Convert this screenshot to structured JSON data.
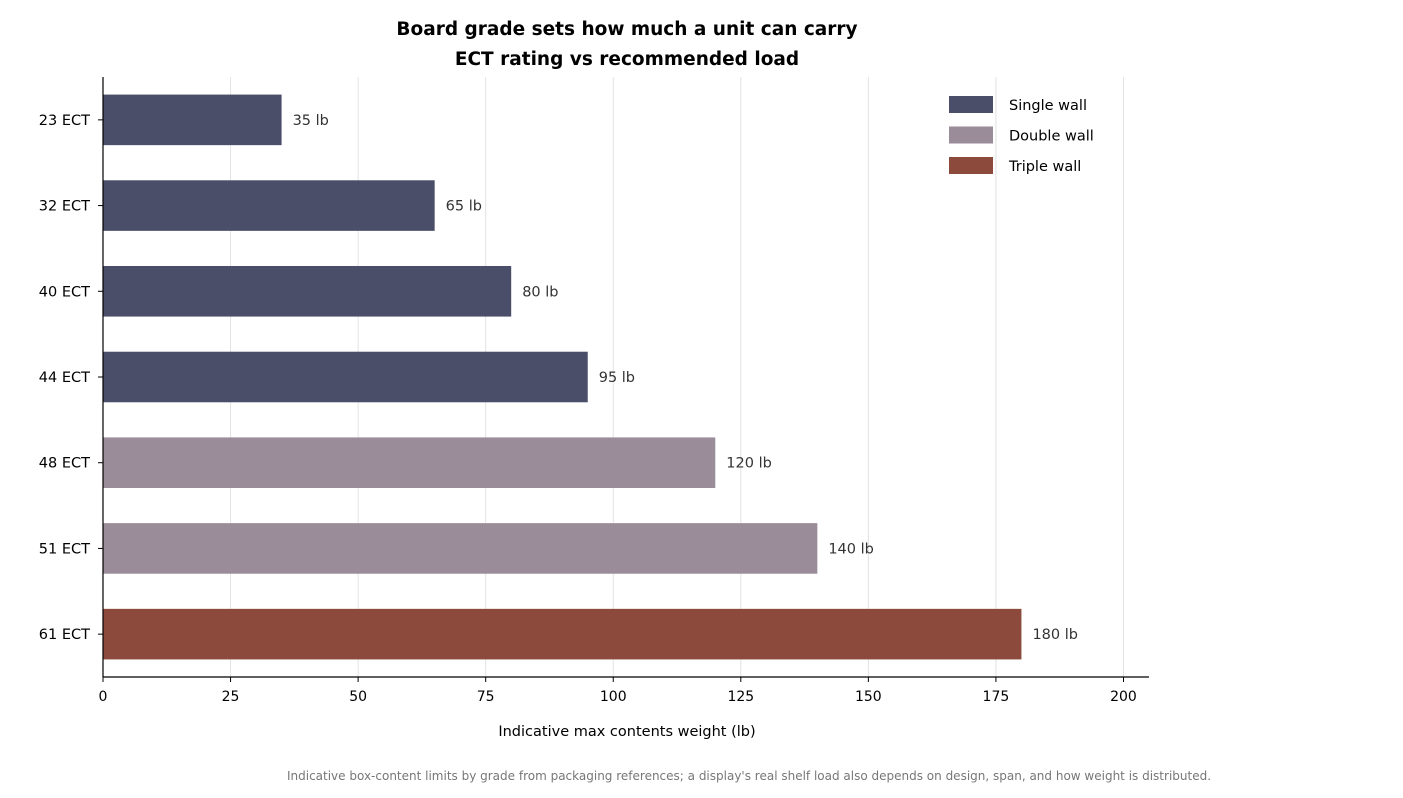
{
  "chart_data": {
    "type": "bar",
    "orientation": "horizontal",
    "title": [
      "Board grade sets how much a unit can carry",
      "ECT rating vs recommended load"
    ],
    "xlabel": "Indicative max contents weight (lb)",
    "ylabel": "",
    "xlim": [
      0,
      205
    ],
    "xticks": [
      0,
      25,
      50,
      75,
      100,
      125,
      150,
      175,
      200
    ],
    "grid": "vertical",
    "legend_position": "top-right",
    "categories": [
      "23 ECT",
      "32 ECT",
      "40 ECT",
      "44 ECT",
      "48 ECT",
      "51 ECT",
      "61 ECT"
    ],
    "values": [
      35,
      65,
      80,
      95,
      120,
      140,
      180
    ],
    "bar_groups": [
      "Single wall",
      "Single wall",
      "Single wall",
      "Single wall",
      "Double wall",
      "Double wall",
      "Triple wall"
    ],
    "value_labels": [
      "35 lb",
      "65 lb",
      "80 lb",
      "95 lb",
      "120 lb",
      "140 lb",
      "180 lb"
    ],
    "legend": [
      {
        "name": "Single wall",
        "color": "#4a4e69"
      },
      {
        "name": "Double wall",
        "color": "#9a8c98"
      },
      {
        "name": "Triple wall",
        "color": "#8b4a3c"
      }
    ],
    "footnote": "Indicative box-content limits by grade from packaging references; a display's real shelf load also depends on design, span, and how weight is distributed."
  }
}
